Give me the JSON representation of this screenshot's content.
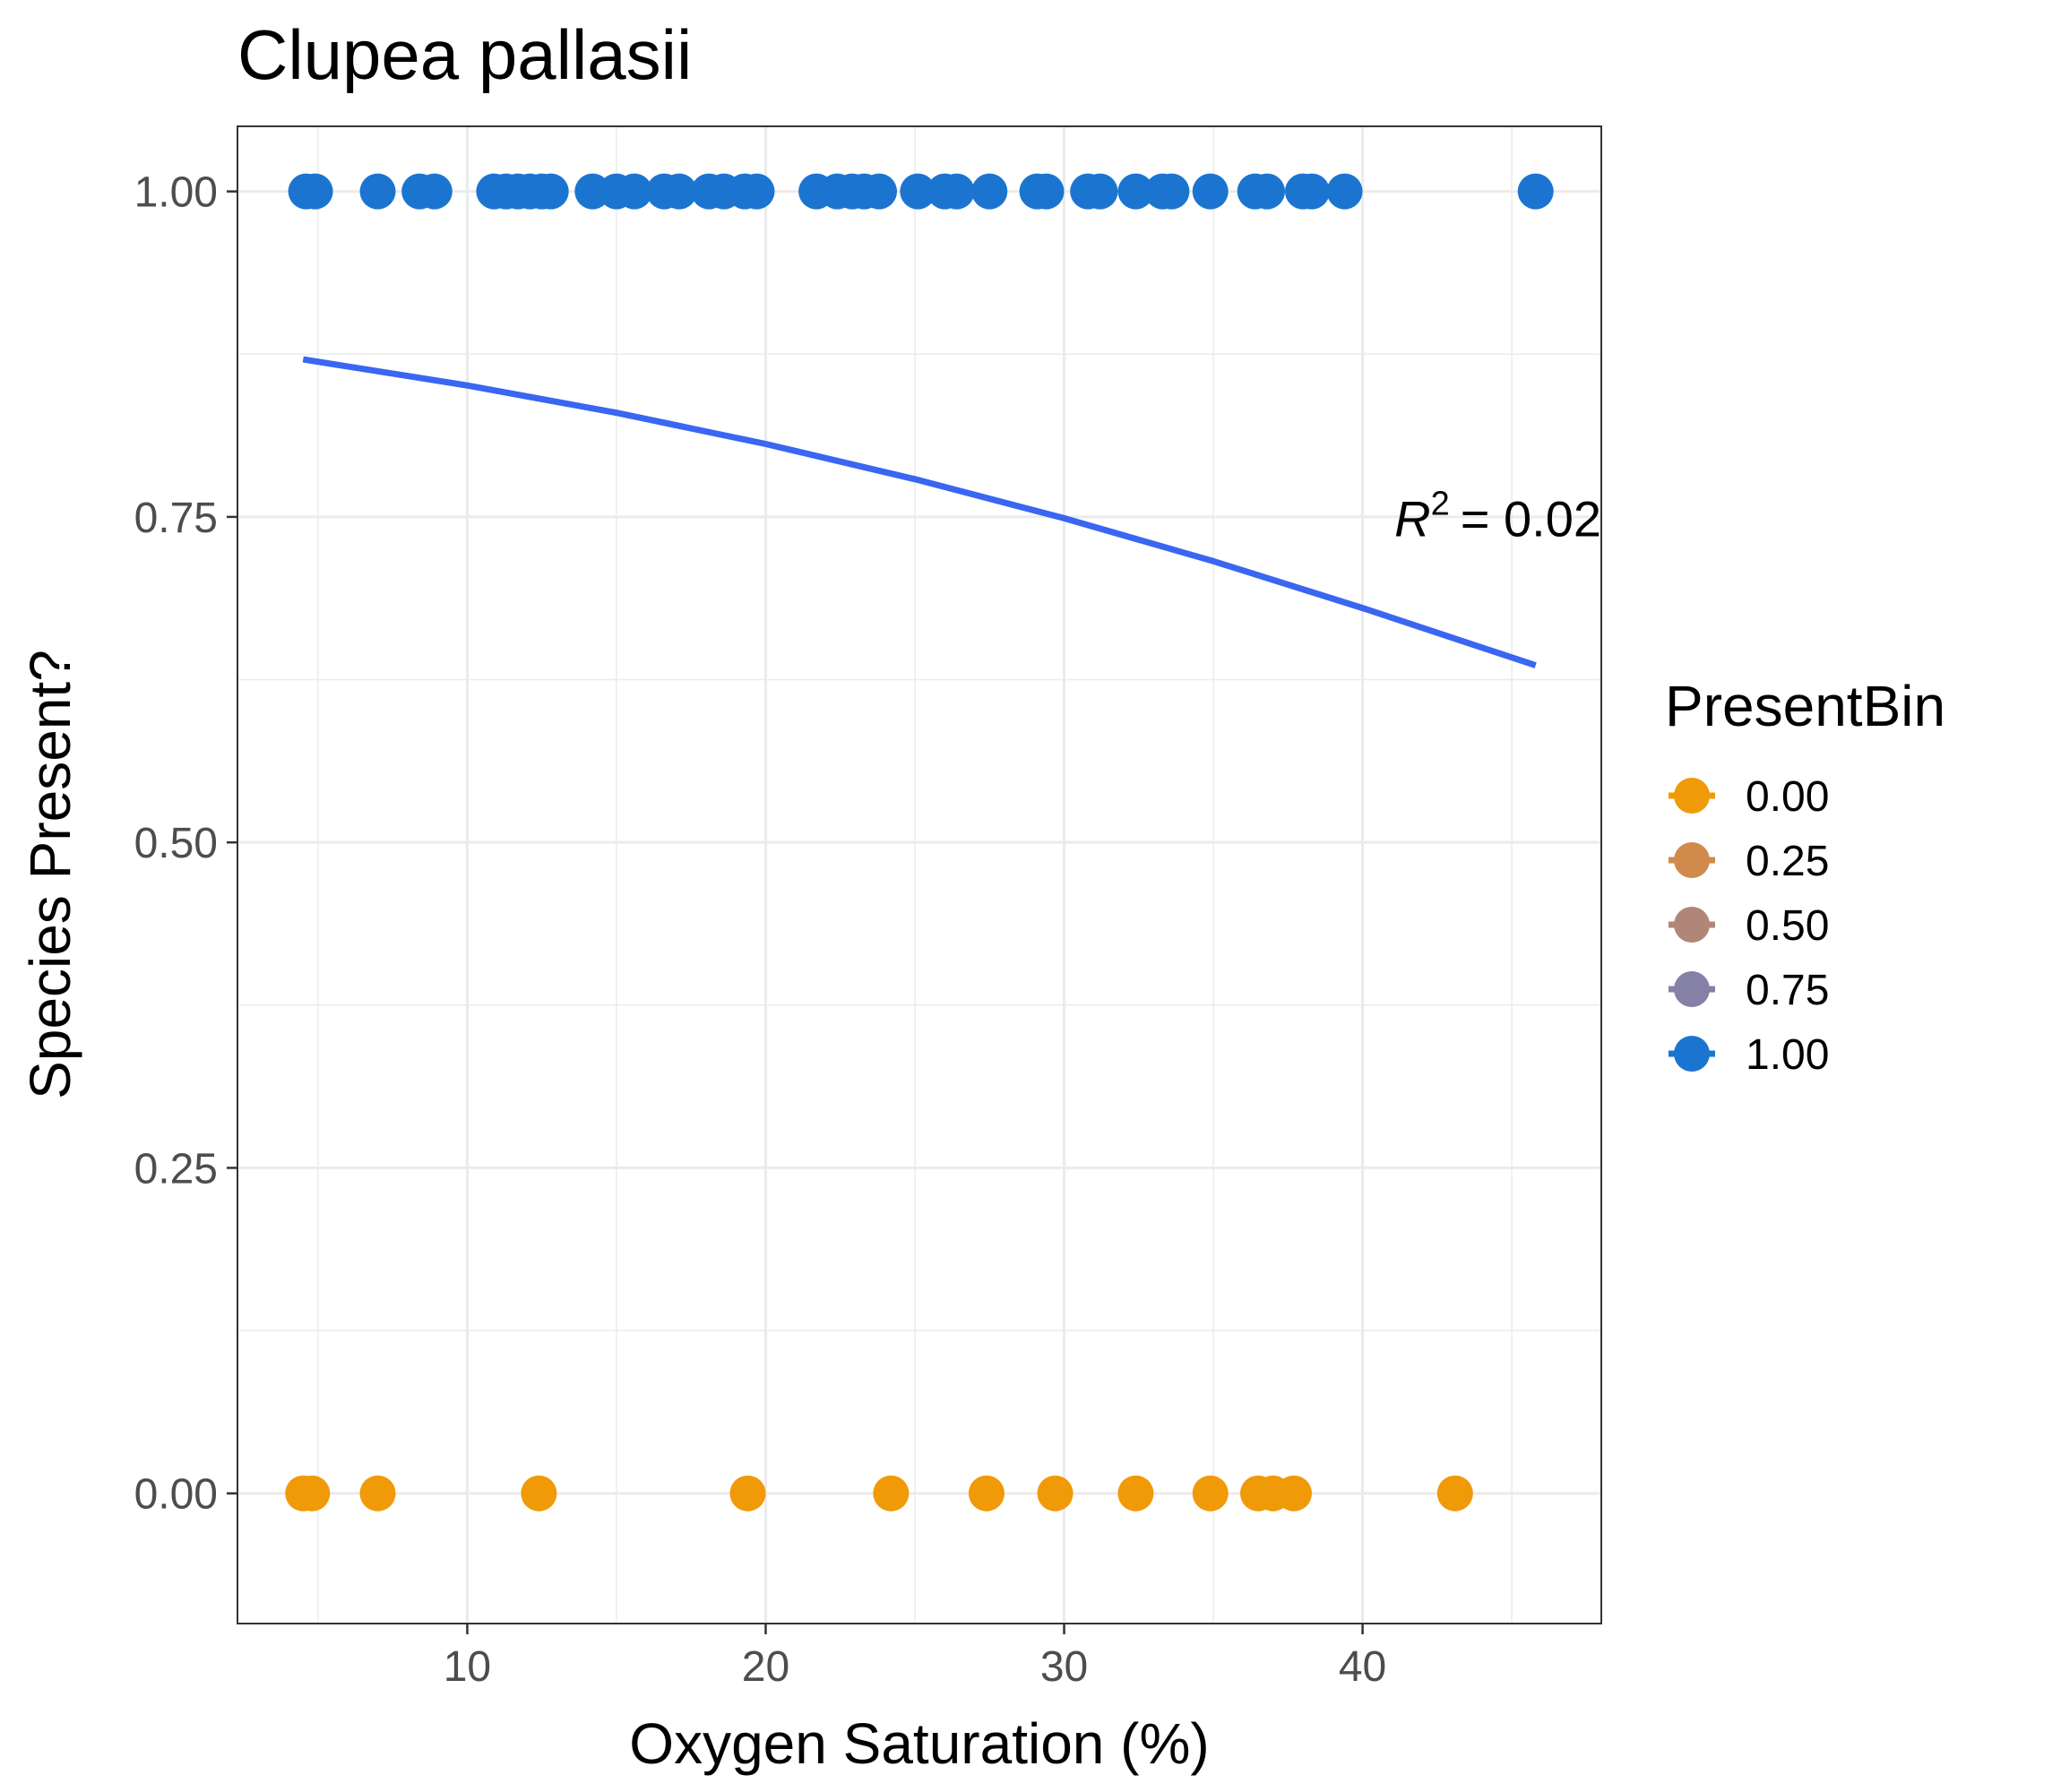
{
  "chart_data": {
    "type": "scatter",
    "title": "Clupea pallasii",
    "xlabel": "Oxygen Saturation (%)",
    "ylabel": "Species Present?",
    "xlim": [
      2.3,
      48.0
    ],
    "ylim": [
      -0.1,
      1.05
    ],
    "x_ticks": [
      10,
      20,
      30,
      40
    ],
    "x_tick_labels": [
      "10",
      "20",
      "30",
      "40"
    ],
    "y_ticks": [
      0,
      0.25,
      0.5,
      0.75,
      1.0
    ],
    "y_tick_labels": [
      "0.00",
      "0.25",
      "0.50",
      "0.75",
      "1.00"
    ],
    "grid": true,
    "legend": {
      "title": "PresentBin",
      "placement": "right",
      "entries": [
        {
          "label": "0.00",
          "color": "#f09a08"
        },
        {
          "label": "0.25",
          "color": "#d08a4c"
        },
        {
          "label": "0.50",
          "color": "#b08678"
        },
        {
          "label": "0.75",
          "color": "#8580a6"
        },
        {
          "label": "1.00",
          "color": "#1b75d0"
        }
      ]
    },
    "series": [
      {
        "name": "1.00",
        "color": "#1b75d0",
        "y": 1.0,
        "x": [
          4.6,
          4.9,
          7.0,
          8.4,
          8.9,
          10.9,
          11.3,
          11.7,
          12.1,
          12.5,
          12.8,
          14.2,
          15.0,
          15.6,
          16.6,
          17.1,
          18.1,
          18.6,
          19.3,
          19.7,
          21.7,
          22.4,
          22.9,
          23.3,
          23.8,
          25.1,
          26.0,
          26.4,
          27.5,
          29.1,
          29.4,
          30.8,
          31.2,
          32.4,
          33.3,
          33.6,
          34.9,
          36.4,
          36.8,
          38.0,
          38.3,
          39.4,
          45.8
        ]
      },
      {
        "name": "0.00",
        "color": "#f09a08",
        "y": 0.0,
        "x": [
          4.5,
          4.8,
          7.0,
          12.4,
          19.4,
          24.2,
          27.4,
          29.7,
          32.4,
          34.9,
          36.5,
          37.0,
          37.7,
          43.1
        ]
      }
    ],
    "fit_line": {
      "color": "#3a66f2",
      "x": [
        4.5,
        10,
        15,
        20,
        25,
        30,
        35,
        40,
        45.8
      ],
      "y": [
        0.871,
        0.851,
        0.83,
        0.806,
        0.779,
        0.749,
        0.716,
        0.68,
        0.636
      ]
    },
    "annotation": {
      "symbol": "R",
      "exponent": "2",
      "equals": "= 0.02",
      "x": 48.0,
      "y": 0.735
    }
  }
}
